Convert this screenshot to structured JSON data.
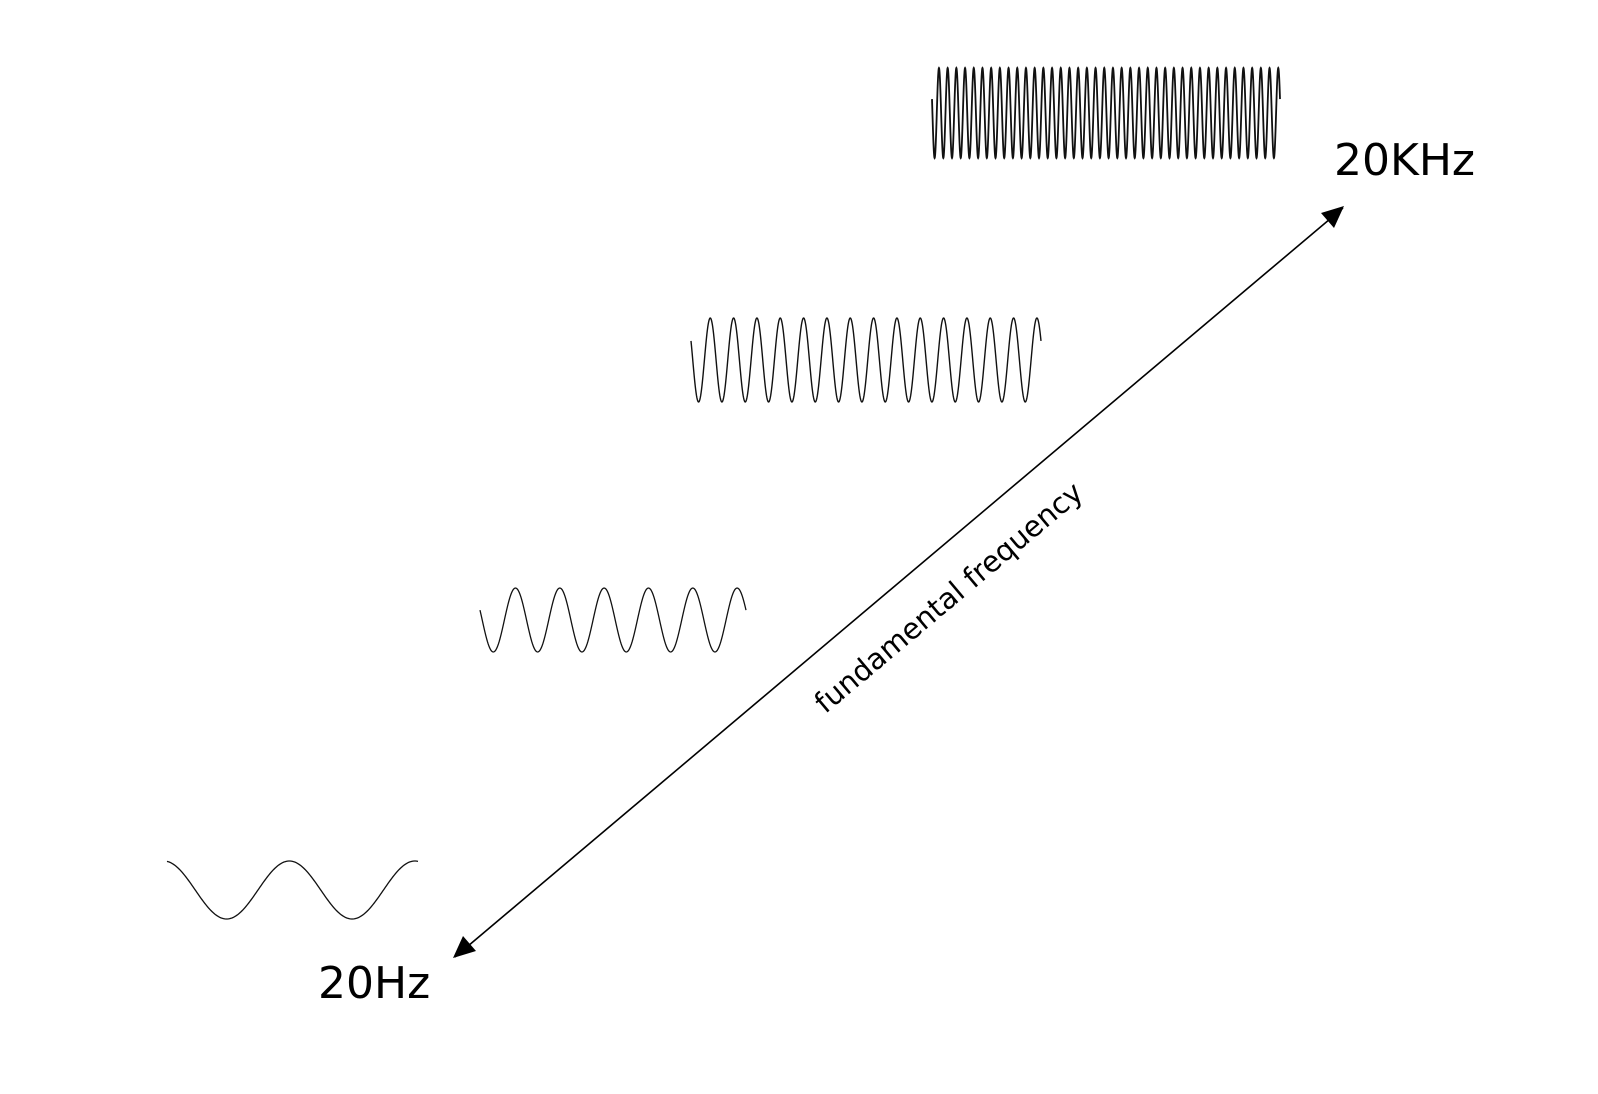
{
  "labels": {
    "low": "20Hz",
    "high": "20KHz",
    "axis": "fundamental frequency"
  },
  "colors": {
    "ink": "#111111",
    "background": "#ffffff"
  },
  "waves": [
    {
      "name": "wave-lowest-frequency",
      "cycles": 2
    },
    {
      "name": "wave-low-frequency",
      "cycles": 6
    },
    {
      "name": "wave-mid-frequency",
      "cycles": 15
    },
    {
      "name": "wave-highest-frequency",
      "cycles": 40
    }
  ]
}
